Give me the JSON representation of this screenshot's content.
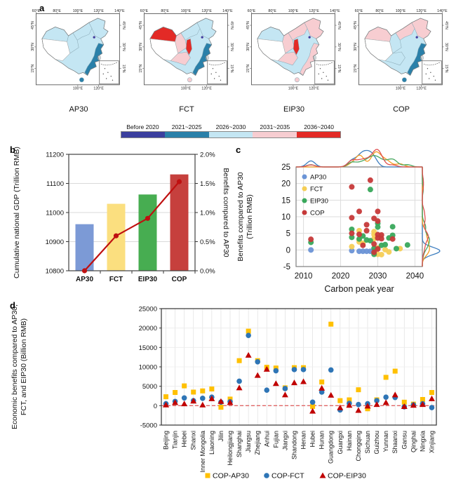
{
  "figure": {
    "panel_labels": {
      "a": "a",
      "b": "b",
      "c": "c",
      "d": "d"
    }
  },
  "maps": {
    "top_ticks": [
      "60°E",
      "80°E",
      "100°E",
      "120°E",
      "140°E"
    ],
    "lat_ticks": [
      "45°N",
      "30°N",
      "15°N"
    ],
    "bottom_ticks": [
      "100°E",
      "120°E"
    ],
    "legend": [
      {
        "label": "Before 2020",
        "color": "#3b3f9e"
      },
      {
        "label": "2021~2025",
        "color": "#2a80a9"
      },
      {
        "label": "2026~2030",
        "color": "#c4e6f3"
      },
      {
        "label": "2031~2035",
        "color": "#f7cdd1"
      },
      {
        "label": "2036~2040",
        "color": "#e32a26"
      }
    ],
    "scenarios": [
      {
        "title": "AP30",
        "regions": {
          "base": 2,
          "tibet": -1,
          "xinjiang": 2,
          "west": 2,
          "north": 2,
          "northeast": 2,
          "strip": null,
          "southcenter": null,
          "coast": 1,
          "hainan": 1,
          "beijing": 0
        }
      },
      {
        "title": "FCT",
        "regions": {
          "base": 2,
          "tibet": -1,
          "xinjiang": 4,
          "west": 3,
          "north": 2,
          "northeast": 2,
          "strip": 4,
          "southcenter": 3,
          "coast": 1,
          "hainan": 3,
          "beijing": 0
        }
      },
      {
        "title": "EIP30",
        "regions": {
          "base": 2,
          "tibet": -1,
          "xinjiang": 2,
          "west": 3,
          "north": 3,
          "northeast": 3,
          "strip": 4,
          "southcenter": 3,
          "coast": 3,
          "hainan": 3,
          "beijing": 0
        }
      },
      {
        "title": "COP",
        "regions": {
          "base": 2,
          "tibet": -1,
          "xinjiang": 3,
          "west": 2,
          "north": 3,
          "northeast": 3,
          "strip": null,
          "southcenter": 2,
          "coast": 1,
          "hainan": 1,
          "beijing": 0
        }
      }
    ]
  },
  "chart_data": [
    {
      "id": "b",
      "type": "bar",
      "categories": [
        "AP30",
        "FCT",
        "EIP30",
        "COP"
      ],
      "bar_values": [
        10960,
        11030,
        11062,
        11131
      ],
      "bar_colors": [
        "#7c9ad6",
        "#fbdf7f",
        "#47ad51",
        "#c6403d"
      ],
      "line_values_pct": [
        0.0,
        0.6,
        0.9,
        1.53
      ],
      "line_color": "#bf1010",
      "ylabel_left": "Cumulative national GDP (Trillion RMB)",
      "ylabel_right": "Benefits compared to AP30",
      "ylim_left": [
        10800,
        11200
      ],
      "yticks_left": [
        10800,
        10900,
        11000,
        11100,
        11200
      ],
      "ylim_right": [
        0,
        2
      ],
      "yticks_right": [
        "0.0%",
        "0.5%",
        "1.0%",
        "1.5%",
        "2.0%"
      ]
    },
    {
      "id": "c",
      "type": "scatter",
      "xlabel": "Carbon peak year",
      "ylabel": "Benefits compared to AP30 (Trillion RMB)",
      "ylabel_lines": [
        "Benefits compared to AP30",
        "(Trillion RMB)"
      ],
      "xlim": [
        2008,
        2042
      ],
      "ylim": [
        -5,
        25
      ],
      "xticks": [
        2010,
        2020,
        2030,
        2040
      ],
      "yticks": [
        -5,
        0,
        5,
        10,
        15,
        20,
        25
      ],
      "legend_position": "upper-left",
      "grid": true,
      "series": [
        {
          "name": "AP30",
          "color": "#6b94d6",
          "points": [
            [
              2012,
              0
            ],
            [
              2023,
              -0.2
            ],
            [
              2025,
              -0.4
            ],
            [
              2026,
              -0.4
            ],
            [
              2027,
              -0.4
            ],
            [
              2028,
              -0.4
            ],
            [
              2029,
              -0.3
            ]
          ]
        },
        {
          "name": "FCT",
          "color": "#f5ce55",
          "points": [
            [
              2023,
              1.0
            ],
            [
              2025,
              5.8
            ],
            [
              2025,
              3.0
            ],
            [
              2025,
              2.4
            ],
            [
              2026,
              2.0
            ],
            [
              2029,
              5.5
            ],
            [
              2029,
              4.6
            ],
            [
              2029,
              3.4
            ],
            [
              2030,
              0.6
            ],
            [
              2030,
              -1.3
            ],
            [
              2031,
              -1.4
            ],
            [
              2032,
              0.1
            ],
            [
              2033,
              -0.6
            ],
            [
              2036,
              0.4
            ]
          ]
        },
        {
          "name": "EIP30",
          "color": "#39a85b",
          "points": [
            [
              2012,
              2.3
            ],
            [
              2023,
              6.2
            ],
            [
              2023,
              3.8
            ],
            [
              2025,
              3.3
            ],
            [
              2026,
              4.2
            ],
            [
              2027,
              3.0
            ],
            [
              2028,
              18.2
            ],
            [
              2028,
              2.8
            ],
            [
              2029,
              0.5
            ],
            [
              2029,
              -1.3
            ],
            [
              2030,
              8.0
            ],
            [
              2030,
              6.9
            ],
            [
              2031,
              1.4
            ],
            [
              2032,
              1.6
            ],
            [
              2033,
              3.6
            ],
            [
              2034,
              7.0
            ],
            [
              2034,
              4.4
            ],
            [
              2035,
              0.4
            ],
            [
              2038,
              1.5
            ]
          ]
        },
        {
          "name": "COP",
          "color": "#c63939",
          "points": [
            [
              2012,
              3.2
            ],
            [
              2023,
              19.0
            ],
            [
              2023,
              9.7
            ],
            [
              2023,
              5.0
            ],
            [
              2025,
              11.6
            ],
            [
              2025,
              4.7
            ],
            [
              2026,
              1.4
            ],
            [
              2027,
              7.6
            ],
            [
              2027,
              5.8
            ],
            [
              2028,
              21.0
            ],
            [
              2029,
              9.5
            ],
            [
              2029,
              1.8
            ],
            [
              2029,
              -0.7
            ],
            [
              2030,
              11.6
            ],
            [
              2030,
              8.7
            ],
            [
              2030,
              4.6
            ],
            [
              2030,
              3.6
            ],
            [
              2030,
              0.3
            ],
            [
              2031,
              4.5
            ],
            [
              2031,
              3.4
            ],
            [
              2034,
              3.3
            ]
          ]
        }
      ],
      "marginal_colors": {
        "AP30": "#3d7ebf",
        "FCT": "#f59c20",
        "EIP30": "#48a860",
        "COP": "#e05050"
      }
    },
    {
      "id": "d",
      "type": "scatter",
      "ylabel": "Economic benefits compared to AP30, FCT, and EIP30 (Billion RMB)",
      "ylabel_lines": [
        "Economic benefits compared to AP30,",
        "FCT, and EIP30 (Billion RMB)"
      ],
      "ylim": [
        -5000,
        25000
      ],
      "yticks": [
        -5000,
        0,
        5000,
        10000,
        15000,
        20000,
        25000
      ],
      "zero_line_color": "#e06666",
      "categories": [
        "Beijing",
        "Tianjin",
        "Hebei",
        "Shanxi",
        "Inner Mongolia",
        "Liaoning",
        "Jilin",
        "Heilongjiang",
        "Shanghai",
        "Jiangsu",
        "Zhejiang",
        "Anhui",
        "Fujian",
        "Jiangxi",
        "Shandong",
        "Henan",
        "Hubei",
        "Hunan",
        "Guangdong",
        "Guangxi",
        "Hainan",
        "Chongqing",
        "Sichuan",
        "Guizhou",
        "Yunnan",
        "Shaanxi",
        "Gansu",
        "Qinghai",
        "Ningxia",
        "Xinjiang"
      ],
      "series": [
        {
          "name": "COP-AP30",
          "marker": "square",
          "color": "#ffc000",
          "values": [
            2300,
            3400,
            5100,
            3500,
            3800,
            4300,
            -400,
            1700,
            11600,
            19200,
            11600,
            9900,
            9700,
            4600,
            9800,
            9800,
            -200,
            6100,
            21000,
            1300,
            1500,
            4100,
            -800,
            1500,
            7300,
            8900,
            900,
            400,
            1600,
            3400
          ]
        },
        {
          "name": "COP-FCT",
          "marker": "circle",
          "color": "#2e75b6",
          "values": [
            500,
            1100,
            2000,
            1300,
            1900,
            2200,
            900,
            1000,
            6300,
            18100,
            11300,
            4000,
            9000,
            4400,
            9300,
            9300,
            900,
            3500,
            9200,
            -1100,
            600,
            300,
            500,
            1300,
            2200,
            2100,
            -300,
            200,
            500,
            -500
          ]
        },
        {
          "name": "COP-EIP30",
          "marker": "triangle",
          "color": "#c00000",
          "values": [
            200,
            800,
            500,
            1200,
            200,
            1800,
            1100,
            800,
            4600,
            13000,
            7800,
            9400,
            5700,
            2800,
            5900,
            6200,
            -1400,
            4500,
            2700,
            -500,
            100,
            -1200,
            -100,
            300,
            800,
            2800,
            -200,
            100,
            300,
            1800
          ]
        }
      ]
    }
  ]
}
